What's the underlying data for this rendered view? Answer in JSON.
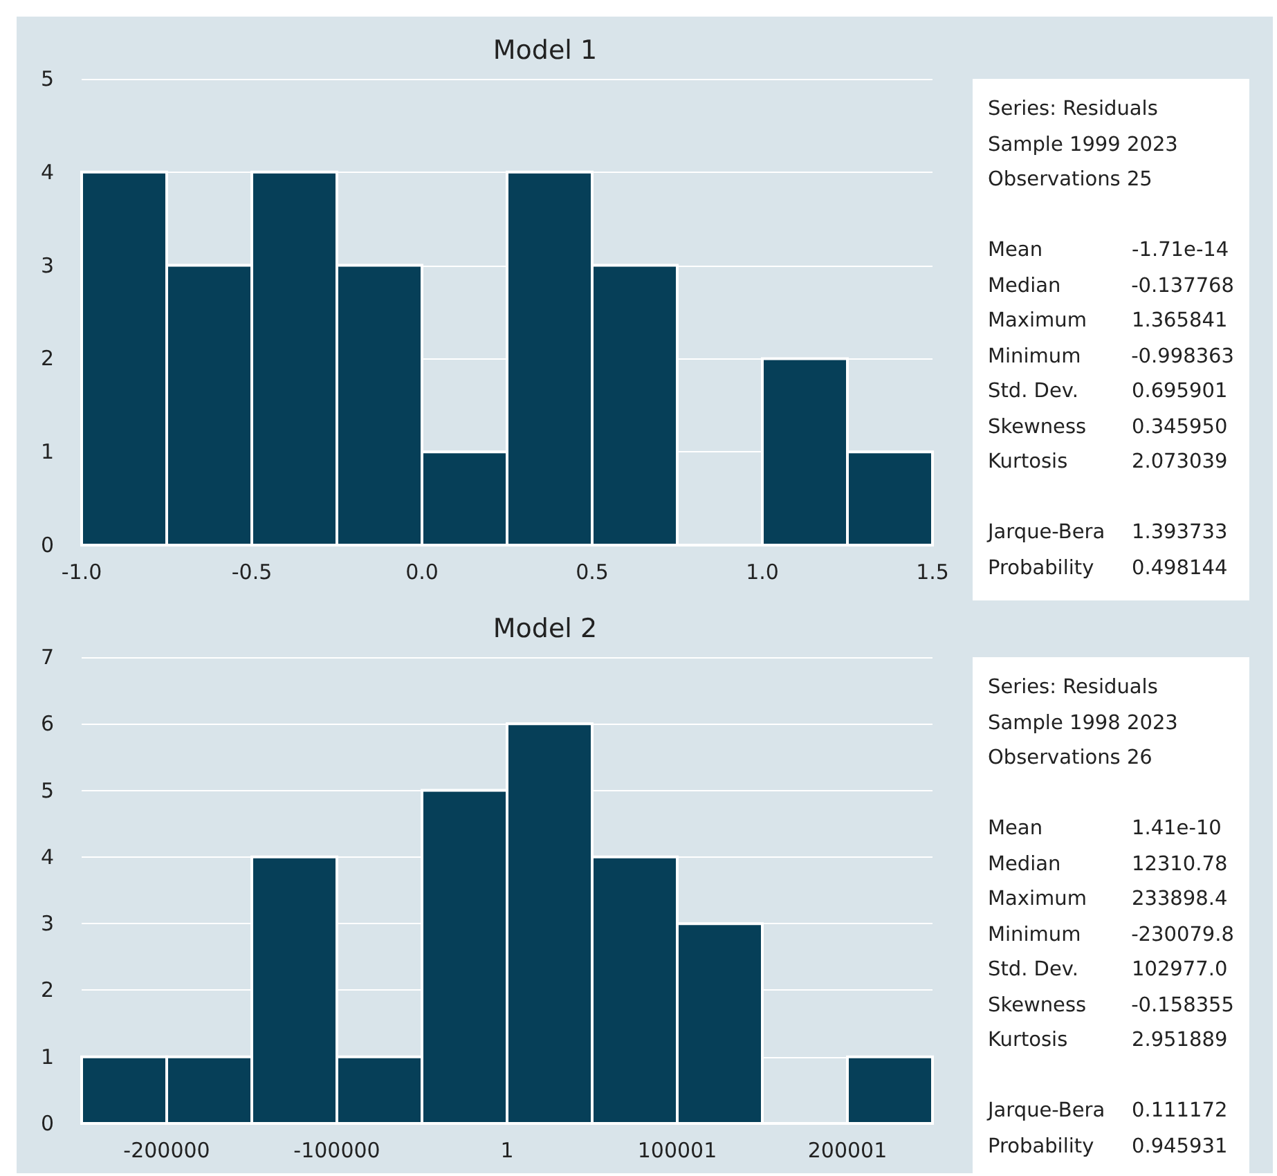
{
  "chart_data": [
    {
      "type": "histogram",
      "title": "Model 1",
      "bins": [
        -1,
        -0.75,
        -0.5,
        -0.25,
        0,
        0.25,
        0.5,
        0.75,
        1,
        1.25,
        1.5
      ],
      "values": [
        4,
        3,
        4,
        3,
        1,
        4,
        3,
        0,
        2,
        1
      ],
      "color": "#063f58",
      "xlim": [
        -1,
        1.5
      ],
      "xticks": [
        {
          "value": -1,
          "label": "-1.0"
        },
        {
          "value": -0.5,
          "label": "-0.5"
        },
        {
          "value": 0,
          "label": "0.0"
        },
        {
          "value": 0.5,
          "label": "0.5"
        },
        {
          "value": 1,
          "label": "1.0"
        },
        {
          "value": 1.5,
          "label": "1.5"
        }
      ],
      "ylim": [
        0,
        5
      ],
      "yticks": [
        0,
        1,
        2,
        3,
        4,
        5
      ],
      "grid": "y",
      "annotations": [
        "Series: Residuals",
        "Sample 1999 2023",
        "Observations 25",
        "Mean",
        "-1.71e-14",
        "Median",
        "-0.137768",
        "Maximum",
        "1.365841",
        "Minimum",
        "-0.998363",
        "Std. Dev.",
        "0.695901",
        "Skewness",
        "0.345950",
        "Kurtosis",
        "2.073039",
        "Jarque-Bera",
        "1.393733",
        "Probability",
        "0.498144"
      ]
    },
    {
      "type": "histogram",
      "title": "Model 2",
      "bins": [
        -249999,
        -199999,
        -149999,
        -99999,
        -49999,
        1,
        50001,
        100001,
        150001,
        200001,
        250001
      ],
      "values": [
        1,
        1,
        4,
        1,
        5,
        6,
        4,
        3,
        0,
        1
      ],
      "color": "#063f58",
      "xlim": [
        -249999,
        250001
      ],
      "xticks": [
        -200000,
        -100000,
        1,
        100001,
        200001
      ],
      "ylim": [
        0,
        7
      ],
      "yticks": [
        0,
        1,
        2,
        3,
        4,
        5,
        6,
        7
      ],
      "grid": "y",
      "annotations": [
        "Series: Residuals",
        "Sample 1998 2023",
        "Observations 26",
        "Mean",
        "1.41e-10",
        "Median",
        "12310.78",
        "Maximum",
        "233898.4",
        "Minimum",
        "-230079.8",
        "Std. Dev.",
        "102977.0",
        "Skewness",
        "-0.158355",
        "Kurtosis",
        "2.951889",
        "Jarque-Bera",
        "0.111172",
        "Probability",
        "0.945931"
      ]
    }
  ]
}
